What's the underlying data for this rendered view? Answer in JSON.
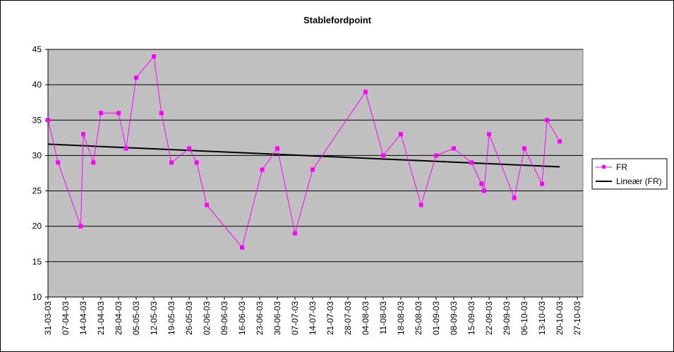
{
  "chart_data": {
    "type": "line",
    "title": "Stablefordpoint",
    "xlabel": "",
    "ylabel": "",
    "ylim": [
      10,
      45
    ],
    "yticks": [
      10,
      15,
      20,
      25,
      30,
      35,
      40,
      45
    ],
    "xlim": [
      "31-03-03",
      "27-10-03"
    ],
    "xtick_labels": [
      "31-03-03",
      "07-04-03",
      "14-04-03",
      "21-04-03",
      "28-04-03",
      "05-05-03",
      "12-05-03",
      "19-05-03",
      "26-05-03",
      "02-06-03",
      "09-06-03",
      "16-06-03",
      "23-06-03",
      "30-06-03",
      "07-07-03",
      "14-07-03",
      "21-07-03",
      "28-07-03",
      "04-08-03",
      "11-08-03",
      "18-08-03",
      "25-08-03",
      "01-09-03",
      "08-09-03",
      "15-09-03",
      "22-09-03",
      "29-09-03",
      "06-10-03",
      "13-10-03",
      "20-10-03",
      "27-10-03"
    ],
    "grid": true,
    "legend_position": "right",
    "series": [
      {
        "name": "FR",
        "color": "#ff00ff",
        "marker": "square",
        "points": [
          {
            "x": "31-03-03",
            "y": 35
          },
          {
            "x": "04-04-03",
            "y": 29
          },
          {
            "x": "13-04-03",
            "y": 20
          },
          {
            "x": "14-04-03",
            "y": 33
          },
          {
            "x": "18-04-03",
            "y": 29
          },
          {
            "x": "21-04-03",
            "y": 36
          },
          {
            "x": "28-04-03",
            "y": 36
          },
          {
            "x": "01-05-03",
            "y": 31
          },
          {
            "x": "05-05-03",
            "y": 41
          },
          {
            "x": "12-05-03",
            "y": 44
          },
          {
            "x": "15-05-03",
            "y": 36
          },
          {
            "x": "19-05-03",
            "y": 29
          },
          {
            "x": "26-05-03",
            "y": 31
          },
          {
            "x": "29-05-03",
            "y": 29
          },
          {
            "x": "02-06-03",
            "y": 23
          },
          {
            "x": "16-06-03",
            "y": 17
          },
          {
            "x": "24-06-03",
            "y": 28
          },
          {
            "x": "30-06-03",
            "y": 31
          },
          {
            "x": "07-07-03",
            "y": 19
          },
          {
            "x": "14-07-03",
            "y": 28
          },
          {
            "x": "04-08-03",
            "y": 39
          },
          {
            "x": "11-08-03",
            "y": 30
          },
          {
            "x": "18-08-03",
            "y": 33
          },
          {
            "x": "26-08-03",
            "y": 23
          },
          {
            "x": "01-09-03",
            "y": 30
          },
          {
            "x": "08-09-03",
            "y": 31
          },
          {
            "x": "15-09-03",
            "y": 29
          },
          {
            "x": "19-09-03",
            "y": 26
          },
          {
            "x": "20-09-03",
            "y": 25
          },
          {
            "x": "22-09-03",
            "y": 33
          },
          {
            "x": "02-10-03",
            "y": 24
          },
          {
            "x": "06-10-03",
            "y": 31
          },
          {
            "x": "13-10-03",
            "y": 26
          },
          {
            "x": "15-10-03",
            "y": 35
          },
          {
            "x": "20-10-03",
            "y": 32
          }
        ]
      },
      {
        "name": "Lineær (FR)",
        "color": "#000000",
        "type": "trendline",
        "points": [
          {
            "x": "31-03-03",
            "y": 31.6
          },
          {
            "x": "20-10-03",
            "y": 28.4
          }
        ]
      }
    ]
  }
}
